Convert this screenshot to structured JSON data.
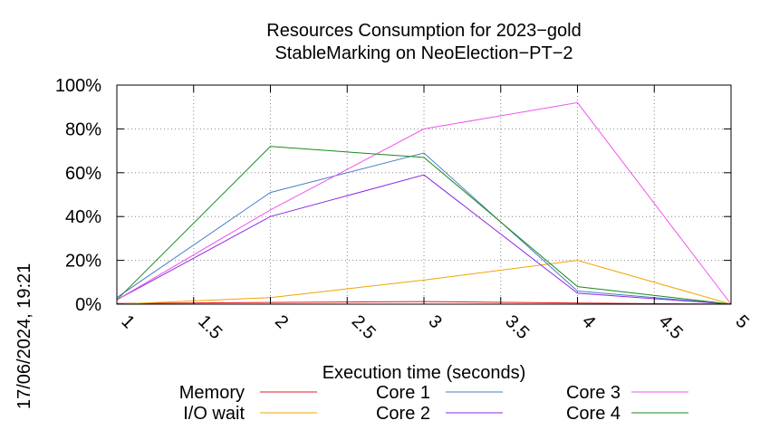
{
  "chart_data": {
    "type": "line",
    "title": [
      "Resources Consumption for 2023−gold",
      "StableMarking on NeoElection−PT−2"
    ],
    "xlabel": "Execution time (seconds)",
    "ylabel": "",
    "side_label": "17/06/2024, 19:21",
    "xlim": [
      1,
      5
    ],
    "ylim": [
      0,
      100
    ],
    "x_ticks": [
      {
        "value": 1,
        "label": "1"
      },
      {
        "value": 1.5,
        "label": "1.5"
      },
      {
        "value": 2,
        "label": "2"
      },
      {
        "value": 2.5,
        "label": "2.5"
      },
      {
        "value": 3,
        "label": "3"
      },
      {
        "value": 3.5,
        "label": "3.5"
      },
      {
        "value": 4,
        "label": "4"
      },
      {
        "value": 4.5,
        "label": "4.5"
      },
      {
        "value": 5,
        "label": "5"
      }
    ],
    "y_ticks": [
      {
        "value": 0,
        "label": "0%"
      },
      {
        "value": 20,
        "label": "20%"
      },
      {
        "value": 40,
        "label": "40%"
      },
      {
        "value": 60,
        "label": "60%"
      },
      {
        "value": 80,
        "label": "80%"
      },
      {
        "value": 100,
        "label": "100%"
      }
    ],
    "grid": true,
    "legend_position": "bottom",
    "series": [
      {
        "name": "Memory",
        "color": "#e41a1c",
        "x": [
          1,
          2,
          3,
          4,
          5
        ],
        "y": [
          0.3,
          0.8,
          1.2,
          0.5,
          0
        ]
      },
      {
        "name": "I/O wait",
        "color": "#f0a500",
        "x": [
          1,
          2,
          3,
          4,
          5
        ],
        "y": [
          0,
          3,
          11,
          20,
          0
        ]
      },
      {
        "name": "Core 1",
        "color": "#4a7ec8",
        "x": [
          1,
          2,
          3,
          4,
          5
        ],
        "y": [
          3,
          51,
          69,
          6,
          0
        ]
      },
      {
        "name": "Core 2",
        "color": "#8a2be2",
        "x": [
          1,
          2,
          3,
          4,
          5
        ],
        "y": [
          2,
          40,
          59,
          5,
          0
        ]
      },
      {
        "name": "Core 3",
        "color": "#ee55ee",
        "x": [
          1,
          2,
          3,
          4,
          5
        ],
        "y": [
          2,
          43,
          80,
          92,
          0
        ]
      },
      {
        "name": "Core 4",
        "color": "#1a8a1a",
        "x": [
          1,
          2,
          3,
          4,
          5
        ],
        "y": [
          2,
          72,
          67,
          8,
          0
        ]
      }
    ]
  }
}
